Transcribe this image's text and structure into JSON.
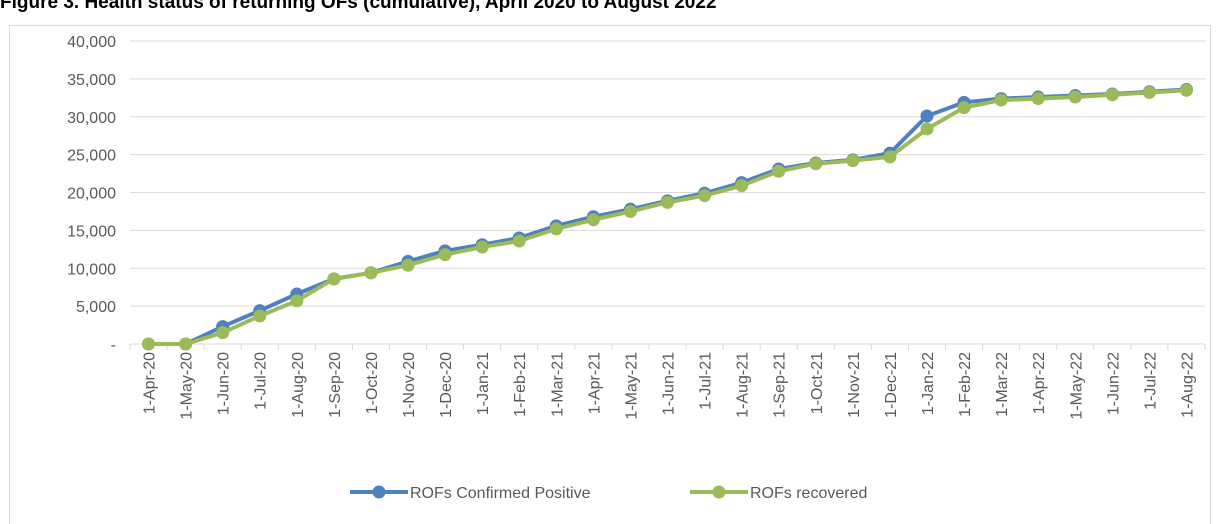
{
  "chart_data": {
    "type": "line",
    "title": "Figure 3. Health status of returning OFs (cumulative), April 2020 to August 2022",
    "categories": [
      "1-Apr-20",
      "1-May-20",
      "1-Jun-20",
      "1-Jul-20",
      "1-Aug-20",
      "1-Sep-20",
      "1-Oct-20",
      "1-Nov-20",
      "1-Dec-20",
      "1-Jan-21",
      "1-Feb-21",
      "1-Mar-21",
      "1-Apr-21",
      "1-May-21",
      "1-Jun-21",
      "1-Jul-21",
      "1-Aug-21",
      "1-Sep-21",
      "1-Oct-21",
      "1-Nov-21",
      "1-Dec-21",
      "1-Jan-22",
      "1-Feb-22",
      "1-Mar-22",
      "1-Apr-22",
      "1-May-22",
      "1-Jun-22",
      "1-Jul-22",
      "1-Aug-22"
    ],
    "series": [
      {
        "name": "ROFs Confirmed Positive",
        "color": "#4f81bd",
        "values": [
          0,
          0,
          2300,
          4400,
          6600,
          8600,
          9400,
          10900,
          12300,
          13100,
          14000,
          15600,
          16800,
          17800,
          18900,
          19900,
          21300,
          23100,
          23900,
          24300,
          25200,
          30100,
          31900,
          32400,
          32600,
          32800,
          33000,
          33300,
          33600
        ]
      },
      {
        "name": "ROFs recovered",
        "color": "#9bbb59",
        "values": [
          0,
          0,
          1500,
          3700,
          5700,
          8600,
          9400,
          10400,
          11800,
          12800,
          13600,
          15200,
          16400,
          17500,
          18700,
          19600,
          20900,
          22800,
          23800,
          24200,
          24700,
          28400,
          31200,
          32200,
          32400,
          32600,
          32900,
          33200,
          33500
        ]
      }
    ],
    "ylim": [
      0,
      40000
    ],
    "yticks": [
      {
        "value": 0,
        "label": "-"
      },
      {
        "value": 5000,
        "label": "5,000"
      },
      {
        "value": 10000,
        "label": "10,000"
      },
      {
        "value": 15000,
        "label": "15,000"
      },
      {
        "value": 20000,
        "label": "20,000"
      },
      {
        "value": 25000,
        "label": "25,000"
      },
      {
        "value": 30000,
        "label": "30,000"
      },
      {
        "value": 35000,
        "label": "35,000"
      },
      {
        "value": 40000,
        "label": "40,000"
      }
    ],
    "grid": true,
    "legend": "bottom"
  }
}
